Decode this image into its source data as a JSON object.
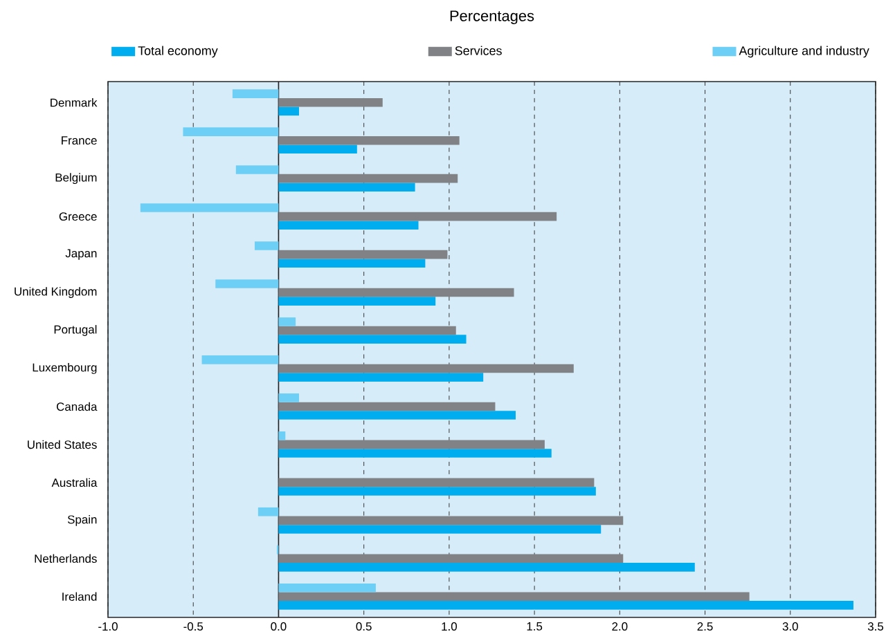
{
  "chart_data": {
    "type": "bar",
    "orientation": "horizontal",
    "title": "Percentages",
    "categories": [
      "Denmark",
      "France",
      "Belgium",
      "Greece",
      "Japan",
      "United Kingdom",
      "Portugal",
      "Luxembourg",
      "Canada",
      "United States",
      "Australia",
      "Spain",
      "Netherlands",
      "Ireland"
    ],
    "series": [
      {
        "name": "Total economy",
        "color": "#00adef",
        "values": [
          0.12,
          0.46,
          0.8,
          0.82,
          0.86,
          0.92,
          1.1,
          1.2,
          1.39,
          1.6,
          1.86,
          1.89,
          2.44,
          3.37
        ]
      },
      {
        "name": "Services",
        "color": "#808285",
        "values": [
          0.61,
          1.06,
          1.05,
          1.63,
          0.99,
          1.38,
          1.04,
          1.73,
          1.27,
          1.56,
          1.85,
          2.02,
          2.02,
          2.76
        ]
      },
      {
        "name": "Agriculture and industry",
        "color": "#6dcff6",
        "values": [
          -0.27,
          -0.56,
          -0.25,
          -0.81,
          -0.14,
          -0.37,
          0.1,
          -0.45,
          0.12,
          0.04,
          0.0,
          -0.12,
          -0.01,
          0.57
        ]
      }
    ],
    "xlim": [
      -1.0,
      3.5
    ],
    "xticks": [
      {
        "value": -1.0,
        "label": "-1.0"
      },
      {
        "value": -0.5,
        "label": "-0.5"
      },
      {
        "value": 0.0,
        "label": "0.0"
      },
      {
        "value": 0.5,
        "label": "0.5"
      },
      {
        "value": 1.0,
        "label": "1.0"
      },
      {
        "value": 1.5,
        "label": "1.5"
      },
      {
        "value": 2.0,
        "label": "2.0"
      },
      {
        "value": 2.5,
        "label": "2.5"
      },
      {
        "value": 3.0,
        "label": "3.0"
      },
      {
        "value": 3.5,
        "label": "3.5"
      }
    ],
    "grid": "x",
    "legend": "top",
    "ref_lines": [
      {
        "axis": "x",
        "value": 0,
        "color": "#231f20"
      }
    ]
  }
}
